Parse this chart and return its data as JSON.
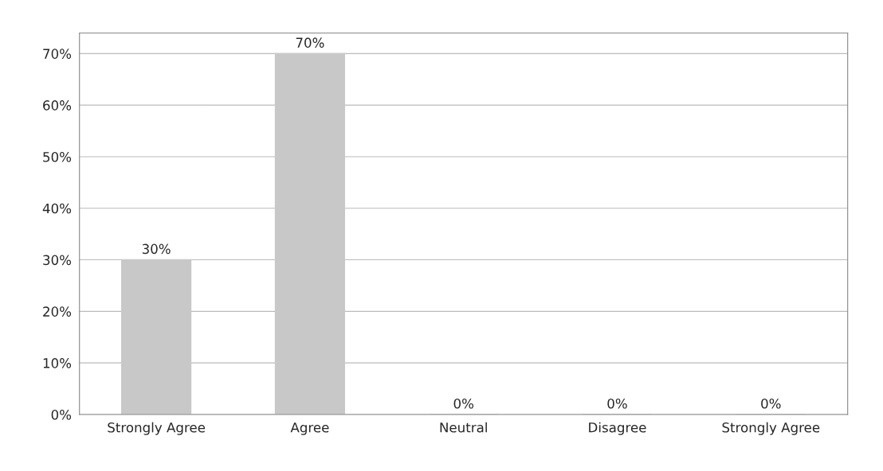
{
  "chart_data": {
    "type": "bar",
    "categories": [
      "Strongly Agree",
      "Agree",
      "Neutral",
      "Disagree",
      "Strongly Agree"
    ],
    "values": [
      30,
      70,
      0,
      0,
      0
    ],
    "value_labels": [
      "30%",
      "70%",
      "0%",
      "0%",
      "0%"
    ],
    "color": "#c8c8c8",
    "ylim": [
      0,
      74
    ],
    "yticks": [
      {
        "value": 0,
        "label": "0%"
      },
      {
        "value": 10,
        "label": "10%"
      },
      {
        "value": 20,
        "label": "20%"
      },
      {
        "value": 30,
        "label": "30%"
      },
      {
        "value": 40,
        "label": "40%"
      },
      {
        "value": 50,
        "label": "50%"
      },
      {
        "value": 60,
        "label": "60%"
      },
      {
        "value": 70,
        "label": "70%"
      }
    ],
    "grid": "y"
  }
}
